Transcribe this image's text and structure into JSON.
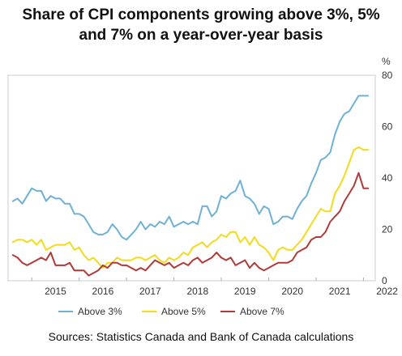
{
  "title_line1": "Share of CPI components growing above 3%, 5%",
  "title_line2": "and 7% on a year-over-year basis",
  "source": "Sources: Statistics Canada and Bank of Canada calculations",
  "chart_data": {
    "type": "line",
    "title": "Share of CPI components growing above 3%, 5% and 7% on a year-over-year basis",
    "ylabel": "%",
    "ylim": [
      0,
      80
    ],
    "yticks": [
      0,
      20,
      40,
      60,
      80
    ],
    "xlim": [
      2014.5,
      2022.25
    ],
    "xticks": [
      "2015",
      "2016",
      "2017",
      "2018",
      "2019",
      "2020",
      "2021",
      "2022"
    ],
    "grid": false,
    "legend": "bottom",
    "series": [
      {
        "name": "Above 3%",
        "color": "#6fb1d6",
        "x": [
          2014.6,
          2014.7,
          2014.8,
          2014.9,
          2015.0,
          2015.1,
          2015.2,
          2015.3,
          2015.4,
          2015.5,
          2015.6,
          2015.7,
          2015.8,
          2015.9,
          2016.0,
          2016.1,
          2016.2,
          2016.3,
          2016.4,
          2016.5,
          2016.6,
          2016.7,
          2016.8,
          2016.9,
          2017.0,
          2017.1,
          2017.2,
          2017.3,
          2017.4,
          2017.5,
          2017.6,
          2017.7,
          2017.8,
          2017.9,
          2018.0,
          2018.1,
          2018.2,
          2018.3,
          2018.4,
          2018.5,
          2018.6,
          2018.7,
          2018.8,
          2018.9,
          2019.0,
          2019.1,
          2019.2,
          2019.3,
          2019.4,
          2019.5,
          2019.6,
          2019.7,
          2019.8,
          2019.9,
          2020.0,
          2020.1,
          2020.2,
          2020.3,
          2020.4,
          2020.5,
          2020.6,
          2020.7,
          2020.8,
          2020.9,
          2021.0,
          2021.1,
          2021.2,
          2021.3,
          2021.4,
          2021.5,
          2021.6,
          2021.7,
          2021.8,
          2021.9,
          2022.0,
          2022.1
        ],
        "values": [
          31,
          32,
          30,
          33,
          36,
          35,
          35,
          31,
          33,
          32,
          32,
          30,
          30,
          26,
          26,
          25,
          22,
          19,
          18,
          18,
          19,
          22,
          20,
          17,
          16,
          18,
          20,
          23,
          20,
          22,
          21,
          23,
          22,
          25,
          21,
          22,
          23,
          22,
          23,
          22,
          29,
          29,
          25,
          27,
          33,
          32,
          34,
          35,
          39,
          33,
          32,
          30,
          26,
          29,
          28,
          22,
          23,
          25,
          25,
          24,
          28,
          31,
          33,
          38,
          42,
          47,
          48,
          50,
          57,
          62,
          65,
          66,
          69,
          72,
          72,
          72
        ]
      },
      {
        "name": "Above 5%",
        "color": "#f2dc1a",
        "x": [
          2014.6,
          2014.7,
          2014.8,
          2014.9,
          2015.0,
          2015.1,
          2015.2,
          2015.3,
          2015.4,
          2015.5,
          2015.6,
          2015.7,
          2015.8,
          2015.9,
          2016.0,
          2016.1,
          2016.2,
          2016.3,
          2016.4,
          2016.5,
          2016.6,
          2016.7,
          2016.8,
          2016.9,
          2017.0,
          2017.1,
          2017.2,
          2017.3,
          2017.4,
          2017.5,
          2017.6,
          2017.7,
          2017.8,
          2017.9,
          2018.0,
          2018.1,
          2018.2,
          2018.3,
          2018.4,
          2018.5,
          2018.6,
          2018.7,
          2018.8,
          2018.9,
          2019.0,
          2019.1,
          2019.2,
          2019.3,
          2019.4,
          2019.5,
          2019.6,
          2019.7,
          2019.8,
          2019.9,
          2020.0,
          2020.1,
          2020.2,
          2020.3,
          2020.4,
          2020.5,
          2020.6,
          2020.7,
          2020.8,
          2020.9,
          2021.0,
          2021.1,
          2021.2,
          2021.3,
          2021.4,
          2021.5,
          2021.6,
          2021.7,
          2021.8,
          2021.9,
          2022.0,
          2022.1
        ],
        "values": [
          15,
          16,
          16,
          15,
          16,
          14,
          16,
          12,
          13,
          14,
          14,
          14,
          15,
          12,
          13,
          10,
          8,
          9,
          7,
          5,
          7,
          7,
          9,
          8,
          8,
          8,
          9,
          9,
          8,
          9,
          10,
          8,
          7,
          9,
          8,
          9,
          11,
          10,
          13,
          14,
          15,
          13,
          15,
          16,
          18,
          17,
          19,
          19,
          15,
          17,
          14,
          17,
          14,
          13,
          11,
          8,
          12,
          13,
          12,
          12,
          14,
          16,
          19,
          22,
          25,
          28,
          27,
          27,
          34,
          37,
          41,
          46,
          51,
          52,
          51,
          51
        ]
      },
      {
        "name": "Above 7%",
        "color": "#b03a3a",
        "x": [
          2014.6,
          2014.7,
          2014.8,
          2014.9,
          2015.0,
          2015.1,
          2015.2,
          2015.3,
          2015.4,
          2015.5,
          2015.6,
          2015.7,
          2015.8,
          2015.9,
          2016.0,
          2016.1,
          2016.2,
          2016.3,
          2016.4,
          2016.5,
          2016.6,
          2016.7,
          2016.8,
          2016.9,
          2017.0,
          2017.1,
          2017.2,
          2017.3,
          2017.4,
          2017.5,
          2017.6,
          2017.7,
          2017.8,
          2017.9,
          2018.0,
          2018.1,
          2018.2,
          2018.3,
          2018.4,
          2018.5,
          2018.6,
          2018.7,
          2018.8,
          2018.9,
          2019.0,
          2019.1,
          2019.2,
          2019.3,
          2019.4,
          2019.5,
          2019.6,
          2019.7,
          2019.8,
          2019.9,
          2020.0,
          2020.1,
          2020.2,
          2020.3,
          2020.4,
          2020.5,
          2020.6,
          2020.7,
          2020.8,
          2020.9,
          2021.0,
          2021.1,
          2021.2,
          2021.3,
          2021.4,
          2021.5,
          2021.6,
          2021.7,
          2021.8,
          2021.9,
          2022.0,
          2022.1
        ],
        "values": [
          10,
          9,
          7,
          6,
          7,
          8,
          9,
          8,
          11,
          6,
          6,
          6,
          7,
          4,
          4,
          4,
          2,
          3,
          4,
          6,
          5,
          7,
          7,
          6,
          6,
          5,
          4,
          5,
          4,
          6,
          8,
          7,
          6,
          7,
          5,
          6,
          7,
          6,
          8,
          9,
          7,
          8,
          9,
          11,
          9,
          8,
          9,
          6,
          7,
          8,
          5,
          7,
          5,
          4,
          5,
          6,
          7,
          7,
          7,
          8,
          11,
          12,
          13,
          16,
          17,
          17,
          19,
          23,
          25,
          27,
          31,
          34,
          37,
          42,
          36,
          36
        ]
      }
    ]
  }
}
